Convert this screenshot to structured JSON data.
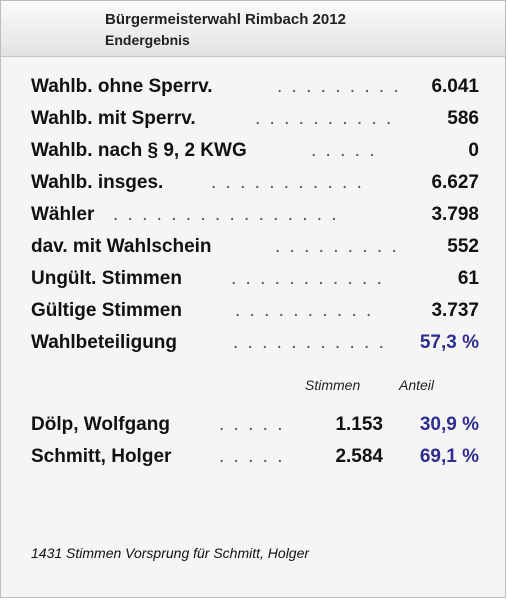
{
  "header": {
    "title": "Bürgermeisterwahl Rimbach 2012",
    "subtitle": "Endergebnis"
  },
  "stats": [
    {
      "label": "Wahlb. ohne Sperrv.",
      "dots": ". . . . . . . . .",
      "value": "6.041"
    },
    {
      "label": "Wahlb. mit Sperrv.",
      "dots": ". . . . . . . . . .",
      "value": "586"
    },
    {
      "label": "Wahlb. nach § 9, 2 KWG",
      "dots": ". . . . .",
      "value": "0"
    },
    {
      "label": "Wahlb. insges.",
      "dots": ". . . . . . . . . . .",
      "value": "6.627"
    },
    {
      "label": "Wähler",
      "dots": ". . . . . . . . . . . . . . . .",
      "value": "3.798"
    },
    {
      "label": "dav. mit Wahlschein",
      "dots": ". . . . . . . . .",
      "value": "552"
    },
    {
      "label": "Ungült. Stimmen",
      "dots": ". . . . . . . . . . .",
      "value": "61"
    },
    {
      "label": "Gültige Stimmen",
      "dots": ". . . . . . . . . .",
      "value": "3.737"
    },
    {
      "label": "Wahlbeteiligung",
      "dots": ". . . . . . . . . . .",
      "value": "57,3 %",
      "accent": true
    }
  ],
  "columns": {
    "votes": "Stimmen",
    "share": "Anteil"
  },
  "candidates": [
    {
      "name": "Dölp, Wolfgang",
      "dots": ". . . . .",
      "votes": "1.153",
      "share": "30,9 %"
    },
    {
      "name": "Schmitt, Holger",
      "dots": ". . . . .",
      "votes": "2.584",
      "share": "69,1 %"
    }
  ],
  "footer": "1431 Stimmen Vorsprung für Schmitt, Holger",
  "colors": {
    "accent": "#2e2e8f",
    "background": "#f5f5f5"
  }
}
